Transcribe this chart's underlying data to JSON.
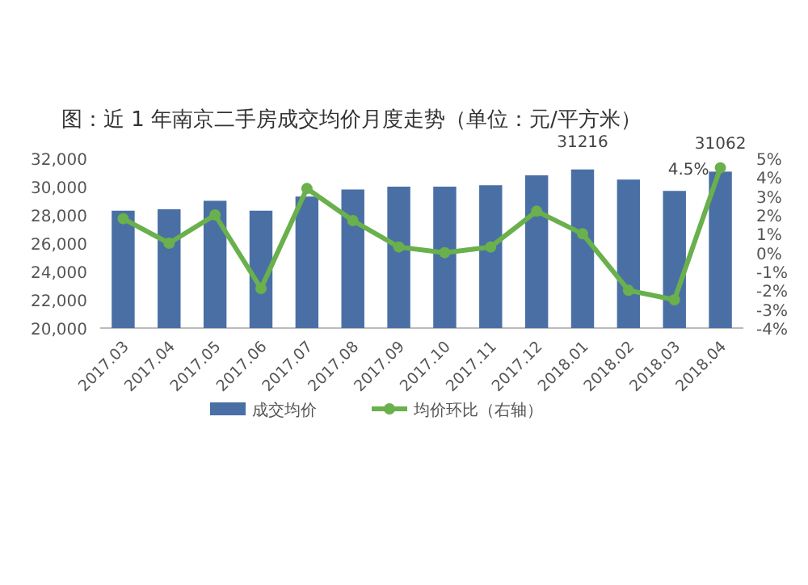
{
  "chart_data": {
    "type": "bar",
    "title": "图：近 1 年南京二手房成交均价月度走势（单位：元/平方米）",
    "categories": [
      "2017.03",
      "2017.04",
      "2017.05",
      "2017.06",
      "2017.07",
      "2017.08",
      "2017.09",
      "2017.10",
      "2017.11",
      "2017.12",
      "2018.01",
      "2018.02",
      "2018.03",
      "2018.04"
    ],
    "series": [
      {
        "name": "成交均价",
        "color": "#4a6fa5",
        "values": [
          28300,
          28400,
          29000,
          28300,
          29300,
          29800,
          30000,
          30000,
          30100,
          30800,
          31216,
          30500,
          29700,
          31062
        ],
        "value_labels": [
          null,
          null,
          null,
          null,
          null,
          null,
          null,
          null,
          null,
          null,
          "31216",
          null,
          null,
          "31062"
        ]
      },
      {
        "type": "line",
        "name": "均价环比（右轴）",
        "color": "#6ab04c",
        "axis": "y2",
        "marker": "circle",
        "values": [
          1.8,
          0.5,
          2.0,
          -1.9,
          3.4,
          1.7,
          0.3,
          0.0,
          0.3,
          2.2,
          1.0,
          -2.0,
          -2.5,
          4.5
        ],
        "value_labels": [
          null,
          null,
          null,
          null,
          null,
          null,
          null,
          null,
          null,
          null,
          null,
          null,
          null,
          "4.5%"
        ]
      }
    ],
    "ylim": [
      20000,
      32000
    ],
    "yticks": [
      {
        "value": 20000,
        "label": "20,000"
      },
      {
        "value": 22000,
        "label": "22,000"
      },
      {
        "value": 24000,
        "label": "24,000"
      },
      {
        "value": 26000,
        "label": "26,000"
      },
      {
        "value": 28000,
        "label": "28,000"
      },
      {
        "value": 30000,
        "label": "30,000"
      },
      {
        "value": 32000,
        "label": "32,000"
      }
    ],
    "y2lim": [
      -4,
      5
    ],
    "y2ticks": [
      {
        "value": -4,
        "label": "-4%"
      },
      {
        "value": -3,
        "label": "-3%"
      },
      {
        "value": -2,
        "label": "-2%"
      },
      {
        "value": -1,
        "label": "-1%"
      },
      {
        "value": 0,
        "label": "0%"
      },
      {
        "value": 1,
        "label": "1%"
      },
      {
        "value": 2,
        "label": "2%"
      },
      {
        "value": 3,
        "label": "3%"
      },
      {
        "value": 4,
        "label": "4%"
      },
      {
        "value": 5,
        "label": "5%"
      }
    ],
    "legend": "bottom"
  }
}
